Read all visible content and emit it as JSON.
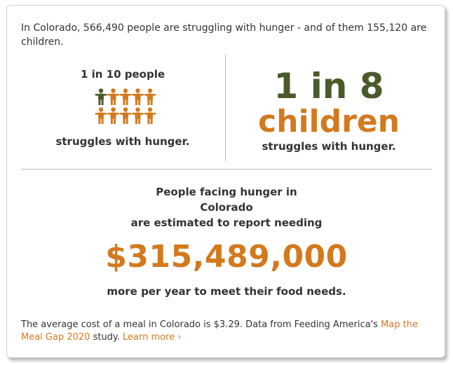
{
  "intro_text": "In Colorado, 566,490 people are struggling with hunger - and of them 155,120 are children.",
  "adults": {
    "heading": "1 in 10 people",
    "caption": "struggles with hunger.",
    "icon_highlighted_color": "#4a5a2a",
    "icon_color": "#d37a1e"
  },
  "children": {
    "ratio": "1 in 8",
    "label": "children",
    "caption": "struggles with hunger.",
    "ratio_color": "#4a5a2a",
    "label_color": "#d37a1e"
  },
  "need": {
    "line1": "People facing hunger in",
    "line2": "Colorado",
    "line3": "are estimated to report needing",
    "amount": "$315,489,000",
    "caption": "more per year to meet their food needs.",
    "amount_color": "#d37a1e"
  },
  "footnote": {
    "text": "The average cost of a meal in Colorado is $3.29. Data from Feeding America's ",
    "link_text": "Map the Meal Gap 2020",
    "after_link": " study. ",
    "learn_more": "Learn more ›"
  }
}
